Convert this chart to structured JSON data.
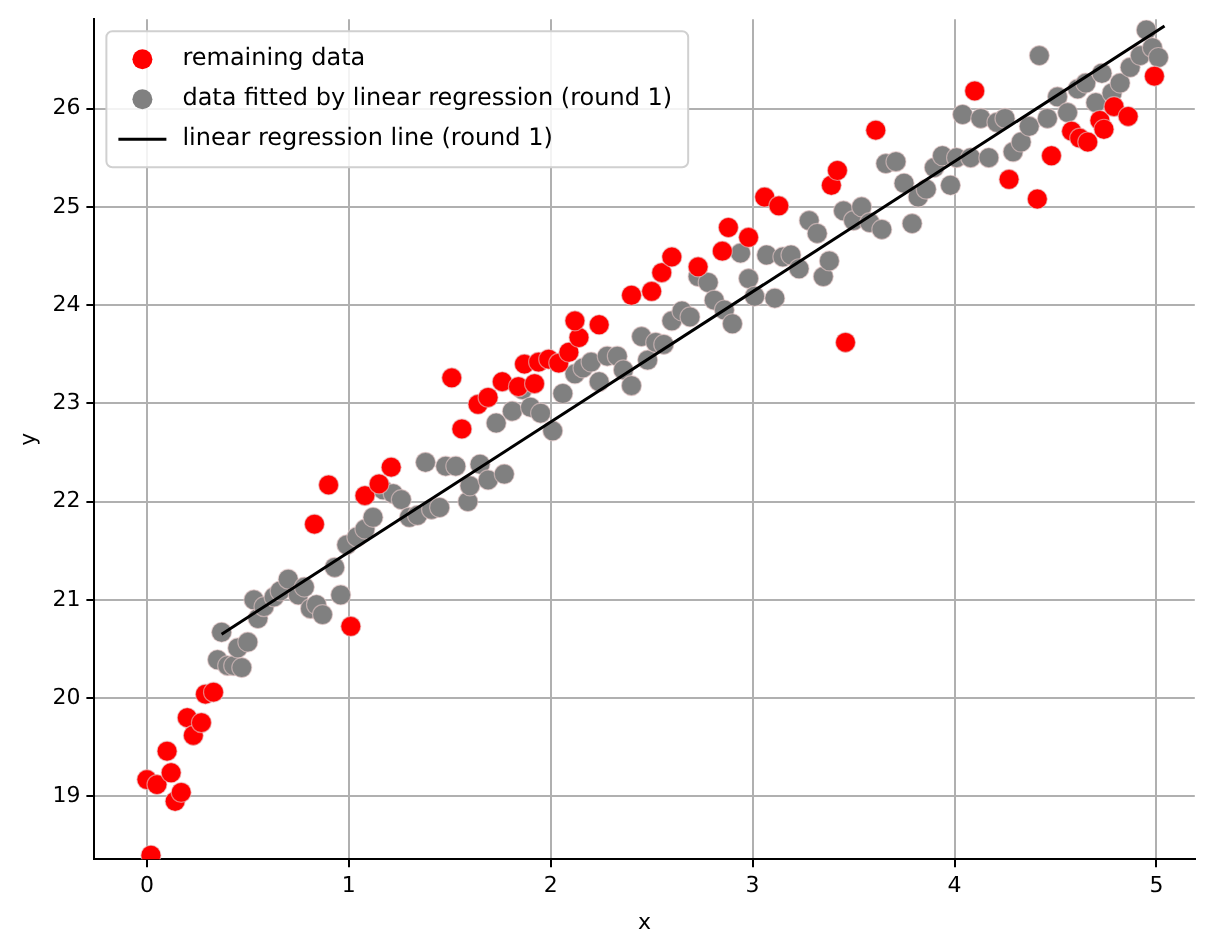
{
  "chart_data": {
    "type": "scatter",
    "xlabel": "x",
    "ylabel": "y",
    "xlim": [
      -0.26,
      5.19
    ],
    "ylim": [
      18.36,
      26.91
    ],
    "xticks": [
      0,
      1,
      2,
      3,
      4,
      5
    ],
    "yticks": [
      19,
      20,
      21,
      22,
      23,
      24,
      25,
      26
    ],
    "grid": true,
    "legend": "top left",
    "marker": "circle",
    "series": [
      {
        "name": "remaining data",
        "color": "#ff0000",
        "x": [
          0.02,
          0.0,
          0.05,
          0.12,
          0.1,
          0.14,
          0.17,
          0.2,
          0.23,
          0.27,
          0.29,
          0.33,
          0.83,
          0.9,
          1.01,
          1.08,
          1.15,
          1.21,
          1.51,
          1.56,
          1.64,
          1.69,
          1.76,
          1.84,
          1.87,
          1.92,
          1.94,
          1.99,
          2.04,
          2.09,
          2.14,
          2.12,
          2.24,
          2.4,
          2.5,
          2.55,
          2.6,
          2.73,
          2.85,
          2.88,
          2.98,
          3.06,
          3.13,
          3.39,
          3.42,
          3.46,
          3.61,
          4.1,
          4.27,
          4.41,
          4.48,
          4.58,
          4.62,
          4.66,
          4.72,
          4.74,
          4.79,
          4.86,
          4.99
        ],
        "values": [
          18.4,
          19.17,
          19.12,
          19.24,
          19.46,
          18.95,
          19.04,
          19.8,
          19.62,
          19.75,
          20.04,
          20.06,
          21.77,
          22.17,
          20.73,
          22.06,
          22.18,
          22.35,
          23.26,
          22.74,
          22.99,
          23.06,
          23.22,
          23.17,
          23.4,
          23.2,
          23.42,
          23.45,
          23.41,
          23.52,
          23.67,
          23.84,
          23.8,
          24.1,
          24.14,
          24.33,
          24.49,
          24.39,
          24.55,
          24.79,
          24.69,
          25.1,
          25.01,
          25.22,
          25.37,
          23.62,
          25.78,
          26.18,
          25.28,
          25.08,
          25.52,
          25.77,
          25.7,
          25.66,
          25.88,
          25.79,
          26.02,
          25.92,
          26.33
        ]
      },
      {
        "name": "data fitted by linear regression (round 1)",
        "color": "#808080",
        "x": [
          0.37,
          0.35,
          0.4,
          0.43,
          0.47,
          0.45,
          0.5,
          0.53,
          0.55,
          0.58,
          0.63,
          0.66,
          0.7,
          0.75,
          0.78,
          0.81,
          0.84,
          0.87,
          0.93,
          0.96,
          0.99,
          1.04,
          1.08,
          1.12,
          1.17,
          1.22,
          1.26,
          1.3,
          1.34,
          1.38,
          1.41,
          1.45,
          1.48,
          1.53,
          1.59,
          1.6,
          1.65,
          1.69,
          1.73,
          1.77,
          1.81,
          1.86,
          1.9,
          1.95,
          2.01,
          2.06,
          2.12,
          2.16,
          2.2,
          2.24,
          2.28,
          2.33,
          2.36,
          2.4,
          2.45,
          2.48,
          2.52,
          2.56,
          2.6,
          2.65,
          2.69,
          2.73,
          2.78,
          2.81,
          2.86,
          2.9,
          2.94,
          2.98,
          3.01,
          3.07,
          3.11,
          3.15,
          3.19,
          3.23,
          3.28,
          3.32,
          3.35,
          3.38,
          3.45,
          3.5,
          3.54,
          3.58,
          3.64,
          3.66,
          3.71,
          3.75,
          3.79,
          3.82,
          3.86,
          3.9,
          3.94,
          3.98,
          4.01,
          4.04,
          4.08,
          4.13,
          4.17,
          4.21,
          4.25,
          4.29,
          4.33,
          4.37,
          4.42,
          4.46,
          4.51,
          4.56,
          4.61,
          4.65,
          4.7,
          4.73,
          4.78,
          4.82,
          4.87,
          4.92,
          4.95,
          4.98,
          5.01
        ],
        "values": [
          20.67,
          20.39,
          20.33,
          20.33,
          20.31,
          20.51,
          20.57,
          21.0,
          20.81,
          20.93,
          21.03,
          21.09,
          21.21,
          21.05,
          21.13,
          20.91,
          20.95,
          20.85,
          21.33,
          21.05,
          21.56,
          21.64,
          21.72,
          21.84,
          22.12,
          22.08,
          22.02,
          21.84,
          21.86,
          22.4,
          21.92,
          21.94,
          22.36,
          22.36,
          22.0,
          22.16,
          22.38,
          22.22,
          22.8,
          22.28,
          22.92,
          23.14,
          22.96,
          22.9,
          22.72,
          23.1,
          23.3,
          23.36,
          23.42,
          23.22,
          23.48,
          23.48,
          23.34,
          23.18,
          23.68,
          23.44,
          23.62,
          23.6,
          23.84,
          23.94,
          23.88,
          24.29,
          24.23,
          24.05,
          23.95,
          23.81,
          24.53,
          24.27,
          24.09,
          24.51,
          24.07,
          24.49,
          24.51,
          24.37,
          24.86,
          24.73,
          24.29,
          24.45,
          24.96,
          24.86,
          25.0,
          24.84,
          24.77,
          25.44,
          25.46,
          25.24,
          24.83,
          25.1,
          25.18,
          25.4,
          25.52,
          25.22,
          25.5,
          25.94,
          25.5,
          25.9,
          25.5,
          25.86,
          25.9,
          25.56,
          25.66,
          25.82,
          26.54,
          25.9,
          26.12,
          25.96,
          26.2,
          26.26,
          26.06,
          26.36,
          26.16,
          26.26,
          26.42,
          26.54,
          26.8,
          26.62,
          26.52
        ]
      },
      {
        "name": "linear regression line (round 1)",
        "type": "line",
        "color": "#000000",
        "marker": "none",
        "line_style": "solid",
        "x": [
          0.37,
          5.04
        ],
        "values": [
          20.65,
          26.84
        ]
      }
    ]
  }
}
